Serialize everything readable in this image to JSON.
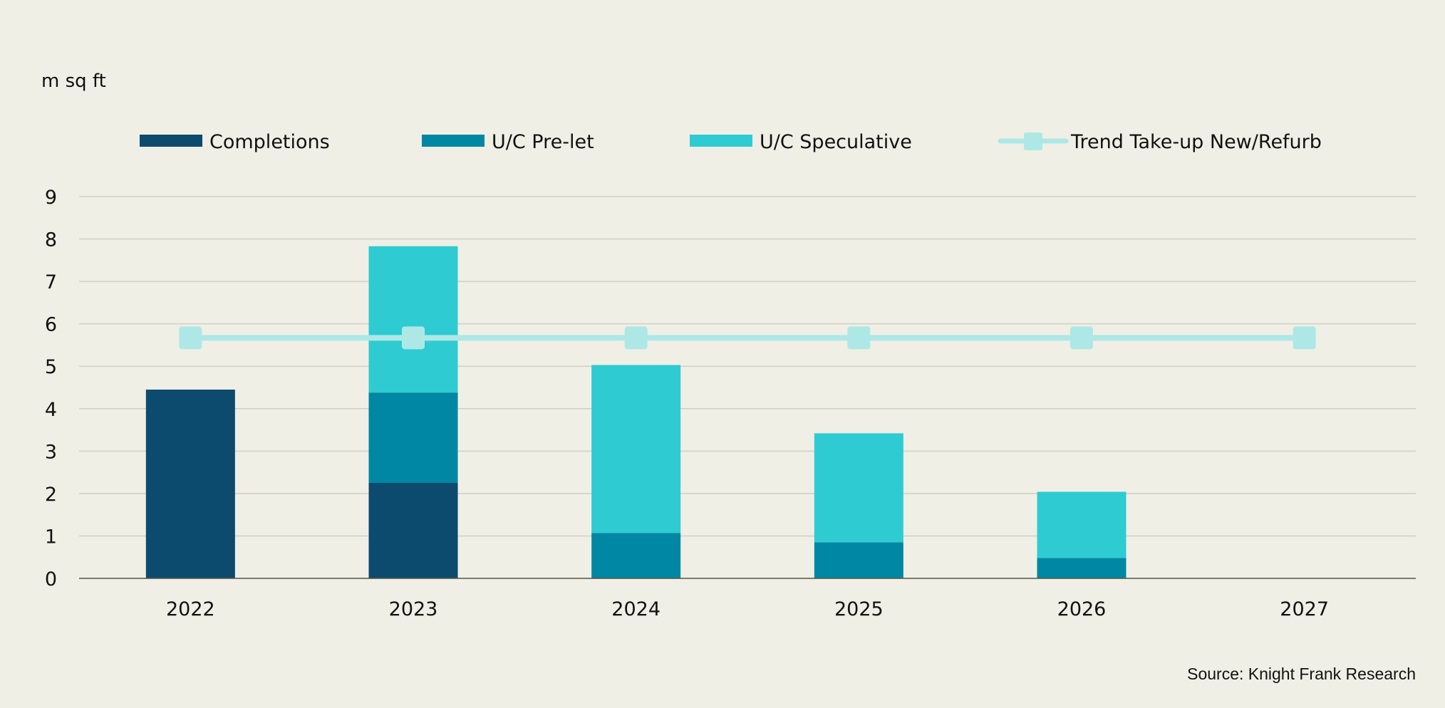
{
  "chart_data": {
    "type": "bar",
    "stacked": true,
    "title": "",
    "ylabel": "m sq ft",
    "xlabel": "",
    "categories": [
      "2022",
      "2023",
      "2024",
      "2025",
      "2026",
      "2027"
    ],
    "ylim": [
      0,
      9
    ],
    "yticks": [
      0,
      1,
      2,
      3,
      4,
      5,
      6,
      7,
      8,
      9
    ],
    "grid": true,
    "legend_position": "top",
    "series": [
      {
        "name": "Completions",
        "kind": "bar",
        "color": "#0c4a6e",
        "values": [
          4.45,
          2.25,
          0,
          0,
          0,
          0
        ]
      },
      {
        "name": "U/C Pre-let",
        "kind": "bar",
        "color": "#0087a3",
        "values": [
          0,
          2.13,
          1.07,
          0.85,
          0.48,
          0
        ]
      },
      {
        "name": "U/C Speculative",
        "kind": "bar",
        "color": "#2ecbd2",
        "values": [
          0,
          3.45,
          3.96,
          2.57,
          1.56,
          0
        ]
      },
      {
        "name": "Trend Take-up New/Refurb",
        "kind": "line",
        "color": "#aee8e6",
        "values": [
          5.67,
          5.67,
          5.67,
          5.67,
          5.67,
          5.67
        ]
      }
    ],
    "source": "Source: Knight Frank Research"
  }
}
